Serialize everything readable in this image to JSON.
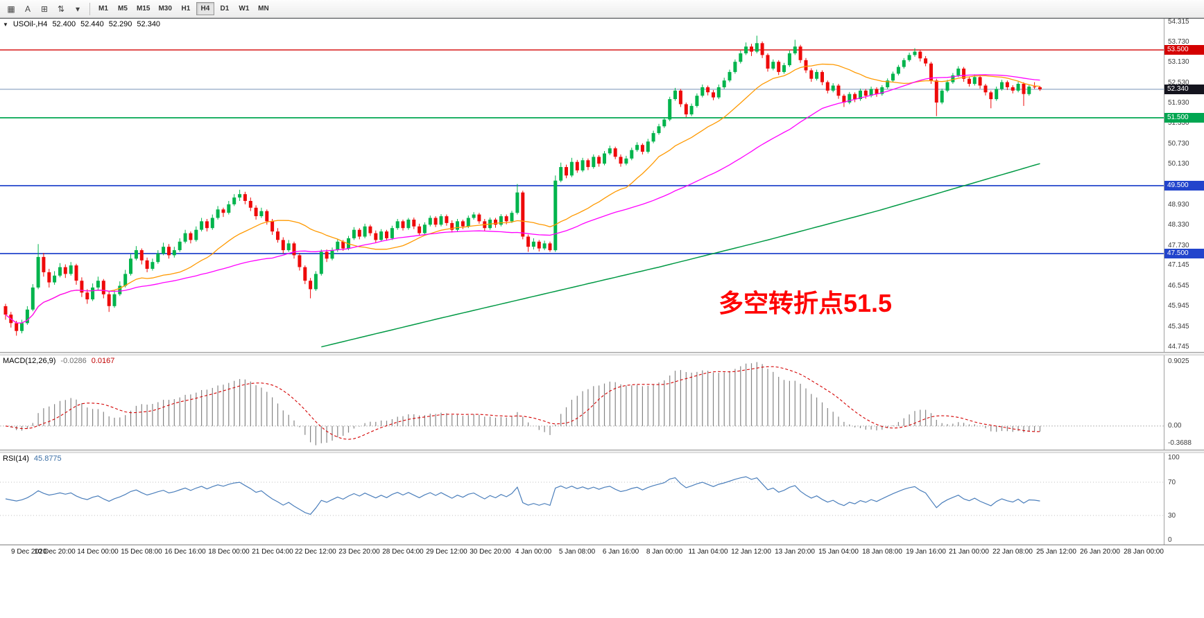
{
  "toolbar": {
    "icons": [
      {
        "name": "chart-grid-icon",
        "glyph": "▦"
      },
      {
        "name": "text-annotation-icon",
        "glyph": "A"
      },
      {
        "name": "template-box-icon",
        "glyph": "⊞"
      },
      {
        "name": "order-arrows-icon",
        "glyph": "⇅"
      },
      {
        "name": "dropdown-caret-icon",
        "glyph": "▾"
      }
    ],
    "timeframes": [
      "M1",
      "M5",
      "M15",
      "M30",
      "H1",
      "H4",
      "D1",
      "W1",
      "MN"
    ],
    "active_timeframe": "H4"
  },
  "chart_data": {
    "type": "candlestick",
    "title": "USOil-,H4",
    "header_icon": "▼",
    "ohlc_display": [
      "52.400",
      "52.440",
      "52.290",
      "52.340"
    ],
    "annotation": {
      "text": "多空转折点51.5",
      "color": "#FF0000"
    },
    "colors": {
      "up": "#00B44C",
      "down": "#EE0A0A"
    },
    "y_axis_labels": [
      "54.315",
      "53.730",
      "53.130",
      "52.530",
      "51.930",
      "51.330",
      "50.730",
      "50.130",
      "49.530",
      "48.930",
      "48.330",
      "47.730",
      "47.145",
      "46.545",
      "45.945",
      "45.345",
      "44.745"
    ],
    "x_axis_labels": [
      "9 Dec 2020",
      "10 Dec 20:00",
      "14 Dec 00:00",
      "15 Dec 08:00",
      "16 Dec 16:00",
      "18 Dec 00:00",
      "21 Dec 04:00",
      "22 Dec 12:00",
      "23 Dec 20:00",
      "28 Dec 04:00",
      "29 Dec 12:00",
      "30 Dec 20:00",
      "4 Jan 00:00",
      "5 Jan 08:00",
      "6 Jan 16:00",
      "8 Jan 00:00",
      "11 Jan 04:00",
      "12 Jan 12:00",
      "13 Jan 20:00",
      "15 Jan 04:00",
      "18 Jan 08:00",
      "19 Jan 16:00",
      "21 Jan 00:00",
      "22 Jan 08:00",
      "25 Jan 12:00",
      "26 Jan 20:00",
      "28 Jan 00:00"
    ],
    "horizontal_lines": [
      {
        "price": 53.5,
        "label": "53.500",
        "line_color": "#D40000",
        "badge_color": "#D40000",
        "width": 1.4
      },
      {
        "price": 52.34,
        "label": "52.340",
        "line_color": "#7691B8",
        "badge_color": "#14141E",
        "width": 1
      },
      {
        "price": 51.5,
        "label": "51.500",
        "line_color": "#00A651",
        "badge_color": "#00A651",
        "width": 1.8
      },
      {
        "price": 49.5,
        "label": "49.500",
        "line_color": "#2244CC",
        "badge_color": "#2244CC",
        "width": 1.8
      },
      {
        "price": 47.5,
        "label": "47.500",
        "line_color": "#2244CC",
        "badge_color": "#2244CC",
        "width": 1.8
      }
    ],
    "moving_averages": {
      "fast": {
        "period": 20,
        "color": "#FF9900"
      },
      "mid": {
        "period": 50,
        "color": "#FF00FF"
      },
      "slow": {
        "color": "#009944",
        "anchors": [
          [
            58,
            44.75
          ],
          [
            80,
            45.6
          ],
          [
            100,
            46.35
          ],
          [
            120,
            47.1
          ],
          [
            140,
            47.9
          ],
          [
            160,
            48.75
          ],
          [
            175,
            49.45
          ],
          [
            190,
            50.15
          ]
        ]
      }
    },
    "candles": [
      [
        45.95,
        46.02,
        45.55,
        45.7
      ],
      [
        45.7,
        45.78,
        45.32,
        45.45
      ],
      [
        45.45,
        45.52,
        45.08,
        45.22
      ],
      [
        45.22,
        45.55,
        45.15,
        45.45
      ],
      [
        45.45,
        45.95,
        45.4,
        45.85
      ],
      [
        45.85,
        46.6,
        45.8,
        46.5
      ],
      [
        46.5,
        47.78,
        46.45,
        47.4
      ],
      [
        47.4,
        47.52,
        46.82,
        46.95
      ],
      [
        46.95,
        47.05,
        46.5,
        46.65
      ],
      [
        46.65,
        46.98,
        46.58,
        46.85
      ],
      [
        46.85,
        47.22,
        46.8,
        47.1
      ],
      [
        47.1,
        47.18,
        46.78,
        46.9
      ],
      [
        46.9,
        47.25,
        46.85,
        47.15
      ],
      [
        47.15,
        47.2,
        46.58,
        46.7
      ],
      [
        46.7,
        46.8,
        46.22,
        46.35
      ],
      [
        46.35,
        46.45,
        46.02,
        46.15
      ],
      [
        46.15,
        46.62,
        46.1,
        46.5
      ],
      [
        46.5,
        46.82,
        46.42,
        46.7
      ],
      [
        46.7,
        46.75,
        46.18,
        46.3
      ],
      [
        46.3,
        46.38,
        45.78,
        45.95
      ],
      [
        45.95,
        46.42,
        45.9,
        46.3
      ],
      [
        46.3,
        46.68,
        46.25,
        46.55
      ],
      [
        46.55,
        47.02,
        46.5,
        46.9
      ],
      [
        46.9,
        47.48,
        46.85,
        47.35
      ],
      [
        47.35,
        47.72,
        47.3,
        47.6
      ],
      [
        47.6,
        47.65,
        47.18,
        47.3
      ],
      [
        47.3,
        47.38,
        46.95,
        47.05
      ],
      [
        47.05,
        47.35,
        47.0,
        47.25
      ],
      [
        47.25,
        47.6,
        47.2,
        47.5
      ],
      [
        47.5,
        47.82,
        47.45,
        47.7
      ],
      [
        47.7,
        47.78,
        47.35,
        47.45
      ],
      [
        47.45,
        47.7,
        47.38,
        47.6
      ],
      [
        47.6,
        47.95,
        47.55,
        47.85
      ],
      [
        47.85,
        48.2,
        47.8,
        48.1
      ],
      [
        48.1,
        48.15,
        47.8,
        47.9
      ],
      [
        47.9,
        48.3,
        47.85,
        48.2
      ],
      [
        48.2,
        48.55,
        48.15,
        48.45
      ],
      [
        48.45,
        48.52,
        48.15,
        48.25
      ],
      [
        48.25,
        48.65,
        48.2,
        48.55
      ],
      [
        48.55,
        48.9,
        48.5,
        48.8
      ],
      [
        48.8,
        48.85,
        48.58,
        48.7
      ],
      [
        48.7,
        49.05,
        48.65,
        48.95
      ],
      [
        48.95,
        49.25,
        48.9,
        49.15
      ],
      [
        49.15,
        49.38,
        49.05,
        49.25
      ],
      [
        49.25,
        49.32,
        48.95,
        49.05
      ],
      [
        49.05,
        49.15,
        48.75,
        48.85
      ],
      [
        48.85,
        48.92,
        48.5,
        48.6
      ],
      [
        48.6,
        48.85,
        48.55,
        48.75
      ],
      [
        48.75,
        48.8,
        48.35,
        48.45
      ],
      [
        48.45,
        48.52,
        48.05,
        48.15
      ],
      [
        48.15,
        48.25,
        47.82,
        47.9
      ],
      [
        47.9,
        47.98,
        47.5,
        47.6
      ],
      [
        47.6,
        47.9,
        47.55,
        47.8
      ],
      [
        47.8,
        47.85,
        47.35,
        47.45
      ],
      [
        47.45,
        47.52,
        47.0,
        47.1
      ],
      [
        47.1,
        47.15,
        46.6,
        46.7
      ],
      [
        46.7,
        46.78,
        46.18,
        46.45
      ],
      [
        46.45,
        46.98,
        46.4,
        46.9
      ],
      [
        46.9,
        47.62,
        46.85,
        47.55
      ],
      [
        47.55,
        47.62,
        47.25,
        47.35
      ],
      [
        47.35,
        47.68,
        47.3,
        47.6
      ],
      [
        47.6,
        47.92,
        47.55,
        47.85
      ],
      [
        47.85,
        47.9,
        47.58,
        47.65
      ],
      [
        47.65,
        48.02,
        47.6,
        47.95
      ],
      [
        47.95,
        48.28,
        47.9,
        48.2
      ],
      [
        48.2,
        48.25,
        47.92,
        48.0
      ],
      [
        48.0,
        48.38,
        47.95,
        48.3
      ],
      [
        48.3,
        48.35,
        48.02,
        48.1
      ],
      [
        48.1,
        48.18,
        47.82,
        47.9
      ],
      [
        47.9,
        48.22,
        47.85,
        48.15
      ],
      [
        48.15,
        48.2,
        47.88,
        47.95
      ],
      [
        47.95,
        48.32,
        47.9,
        48.25
      ],
      [
        48.25,
        48.52,
        48.2,
        48.45
      ],
      [
        48.45,
        48.5,
        48.18,
        48.25
      ],
      [
        48.25,
        48.55,
        48.2,
        48.5
      ],
      [
        48.5,
        48.56,
        48.22,
        48.3
      ],
      [
        48.3,
        48.38,
        48.02,
        48.1
      ],
      [
        48.1,
        48.42,
        48.05,
        48.35
      ],
      [
        48.35,
        48.62,
        48.3,
        48.55
      ],
      [
        48.55,
        48.6,
        48.28,
        48.35
      ],
      [
        48.35,
        48.66,
        48.3,
        48.6
      ],
      [
        48.6,
        48.65,
        48.32,
        48.4
      ],
      [
        48.4,
        48.48,
        48.12,
        48.2
      ],
      [
        48.2,
        48.52,
        48.15,
        48.45
      ],
      [
        48.45,
        48.5,
        48.22,
        48.3
      ],
      [
        48.3,
        48.62,
        48.25,
        48.55
      ],
      [
        48.55,
        48.72,
        48.5,
        48.65
      ],
      [
        48.65,
        48.7,
        48.38,
        48.45
      ],
      [
        48.45,
        48.52,
        48.16,
        48.25
      ],
      [
        48.25,
        48.56,
        48.2,
        48.5
      ],
      [
        48.5,
        48.55,
        48.26,
        48.35
      ],
      [
        48.35,
        48.66,
        48.3,
        48.6
      ],
      [
        48.6,
        48.65,
        48.36,
        48.45
      ],
      [
        48.45,
        48.76,
        48.4,
        48.7
      ],
      [
        48.7,
        49.55,
        48.65,
        49.3
      ],
      [
        49.3,
        49.35,
        47.92,
        48.0
      ],
      [
        48.0,
        48.06,
        47.55,
        47.7
      ],
      [
        47.7,
        47.95,
        47.62,
        47.85
      ],
      [
        47.85,
        47.9,
        47.56,
        47.65
      ],
      [
        47.65,
        47.88,
        47.6,
        47.8
      ],
      [
        47.8,
        47.85,
        47.55,
        47.6
      ],
      [
        47.6,
        49.8,
        47.55,
        49.65
      ],
      [
        49.65,
        50.18,
        49.6,
        50.05
      ],
      [
        50.05,
        50.12,
        49.72,
        49.8
      ],
      [
        49.8,
        50.32,
        49.75,
        50.2
      ],
      [
        50.2,
        50.26,
        49.88,
        49.95
      ],
      [
        49.95,
        50.32,
        49.9,
        50.25
      ],
      [
        50.25,
        50.3,
        49.96,
        50.05
      ],
      [
        50.05,
        50.42,
        50.0,
        50.35
      ],
      [
        50.35,
        50.4,
        50.06,
        50.15
      ],
      [
        50.15,
        50.52,
        50.1,
        50.45
      ],
      [
        50.45,
        50.68,
        50.4,
        50.6
      ],
      [
        50.6,
        50.65,
        50.28,
        50.35
      ],
      [
        50.35,
        50.42,
        50.06,
        50.15
      ],
      [
        50.15,
        50.38,
        50.1,
        50.3
      ],
      [
        50.3,
        50.62,
        50.25,
        50.55
      ],
      [
        50.55,
        50.78,
        50.5,
        50.7
      ],
      [
        50.7,
        50.75,
        50.42,
        50.5
      ],
      [
        50.5,
        50.88,
        50.45,
        50.8
      ],
      [
        50.8,
        51.12,
        50.75,
        51.05
      ],
      [
        51.05,
        51.32,
        51.0,
        51.25
      ],
      [
        51.25,
        51.52,
        51.2,
        51.45
      ],
      [
        51.45,
        52.12,
        51.4,
        52.05
      ],
      [
        52.05,
        52.38,
        52.0,
        52.3
      ],
      [
        52.3,
        52.35,
        51.82,
        51.9
      ],
      [
        51.9,
        51.95,
        51.52,
        51.6
      ],
      [
        51.6,
        51.92,
        51.55,
        51.85
      ],
      [
        51.85,
        52.22,
        51.8,
        52.15
      ],
      [
        52.15,
        52.48,
        52.1,
        52.4
      ],
      [
        52.4,
        52.45,
        52.16,
        52.25
      ],
      [
        52.25,
        52.32,
        52.02,
        52.1
      ],
      [
        52.1,
        52.48,
        52.05,
        52.4
      ],
      [
        52.4,
        52.68,
        52.35,
        52.6
      ],
      [
        52.6,
        52.92,
        52.55,
        52.85
      ],
      [
        52.85,
        53.22,
        52.8,
        53.15
      ],
      [
        53.15,
        53.48,
        53.1,
        53.4
      ],
      [
        53.4,
        53.72,
        53.35,
        53.6
      ],
      [
        53.6,
        53.68,
        53.32,
        53.45
      ],
      [
        53.45,
        53.92,
        53.4,
        53.7
      ],
      [
        53.7,
        53.75,
        53.26,
        53.35
      ],
      [
        53.35,
        53.4,
        52.86,
        52.95
      ],
      [
        52.95,
        53.22,
        52.9,
        53.15
      ],
      [
        53.15,
        53.2,
        52.76,
        52.85
      ],
      [
        52.85,
        53.12,
        52.8,
        53.05
      ],
      [
        53.05,
        53.48,
        53.0,
        53.4
      ],
      [
        53.4,
        53.8,
        53.35,
        53.6
      ],
      [
        53.6,
        53.65,
        53.12,
        53.2
      ],
      [
        53.2,
        53.26,
        52.82,
        52.9
      ],
      [
        52.9,
        52.96,
        52.56,
        52.65
      ],
      [
        52.65,
        52.92,
        52.6,
        52.85
      ],
      [
        52.85,
        52.9,
        52.46,
        52.55
      ],
      [
        52.55,
        52.6,
        52.22,
        52.3
      ],
      [
        52.3,
        52.52,
        52.25,
        52.45
      ],
      [
        52.45,
        52.5,
        52.06,
        52.15
      ],
      [
        52.15,
        52.2,
        51.82,
        51.95
      ],
      [
        51.95,
        52.26,
        51.9,
        52.2
      ],
      [
        52.2,
        52.25,
        51.96,
        52.05
      ],
      [
        52.05,
        52.36,
        52.0,
        52.3
      ],
      [
        52.3,
        52.35,
        52.06,
        52.15
      ],
      [
        52.15,
        52.42,
        52.1,
        52.35
      ],
      [
        52.35,
        52.4,
        52.12,
        52.2
      ],
      [
        52.2,
        52.46,
        52.15,
        52.4
      ],
      [
        52.4,
        52.66,
        52.35,
        52.6
      ],
      [
        52.6,
        52.86,
        52.55,
        52.8
      ],
      [
        52.8,
        53.06,
        52.75,
        53.0
      ],
      [
        53.0,
        53.26,
        52.95,
        53.2
      ],
      [
        53.2,
        53.42,
        53.15,
        53.35
      ],
      [
        53.35,
        53.55,
        53.3,
        53.45
      ],
      [
        53.45,
        53.5,
        53.16,
        53.25
      ],
      [
        53.25,
        53.32,
        53.02,
        53.1
      ],
      [
        53.1,
        53.15,
        52.5,
        52.6
      ],
      [
        52.6,
        52.65,
        51.55,
        51.95
      ],
      [
        51.95,
        52.36,
        51.9,
        52.3
      ],
      [
        52.3,
        52.62,
        52.25,
        52.55
      ],
      [
        52.55,
        52.82,
        52.5,
        52.75
      ],
      [
        52.75,
        53.02,
        52.7,
        52.95
      ],
      [
        52.95,
        53.0,
        52.56,
        52.65
      ],
      [
        52.65,
        52.72,
        52.42,
        52.5
      ],
      [
        52.5,
        52.78,
        52.45,
        52.7
      ],
      [
        52.7,
        52.75,
        52.36,
        52.45
      ],
      [
        52.45,
        52.5,
        52.16,
        52.25
      ],
      [
        52.25,
        52.3,
        51.78,
        52.05
      ],
      [
        52.05,
        52.42,
        52.0,
        52.35
      ],
      [
        52.35,
        52.62,
        52.3,
        52.55
      ],
      [
        52.55,
        52.6,
        52.32,
        52.4
      ],
      [
        52.4,
        52.46,
        52.22,
        52.3
      ],
      [
        52.3,
        52.56,
        52.25,
        52.5
      ],
      [
        52.5,
        52.55,
        51.85,
        52.2
      ],
      [
        52.2,
        52.48,
        52.15,
        52.42
      ],
      [
        52.42,
        52.55,
        52.35,
        52.4
      ],
      [
        52.4,
        52.44,
        52.29,
        52.34
      ]
    ],
    "macd": {
      "label": "MACD(12,26,9)",
      "value_main": "-0.0286",
      "value_signal": "0.0167",
      "params": {
        "fast": 12,
        "slow": 26,
        "signal": 9
      },
      "scale_labels": [
        "0.9025",
        "0.00",
        "-0.3688"
      ],
      "colors": {
        "histogram": "#848484",
        "signal": "#D40000"
      }
    },
    "rsi": {
      "label": "RSI(14)",
      "value": "45.8775",
      "period": 14,
      "levels": [
        70,
        30
      ],
      "scale_labels": [
        "100",
        "70",
        "30",
        "0"
      ],
      "color": "#4A7EBB"
    }
  }
}
